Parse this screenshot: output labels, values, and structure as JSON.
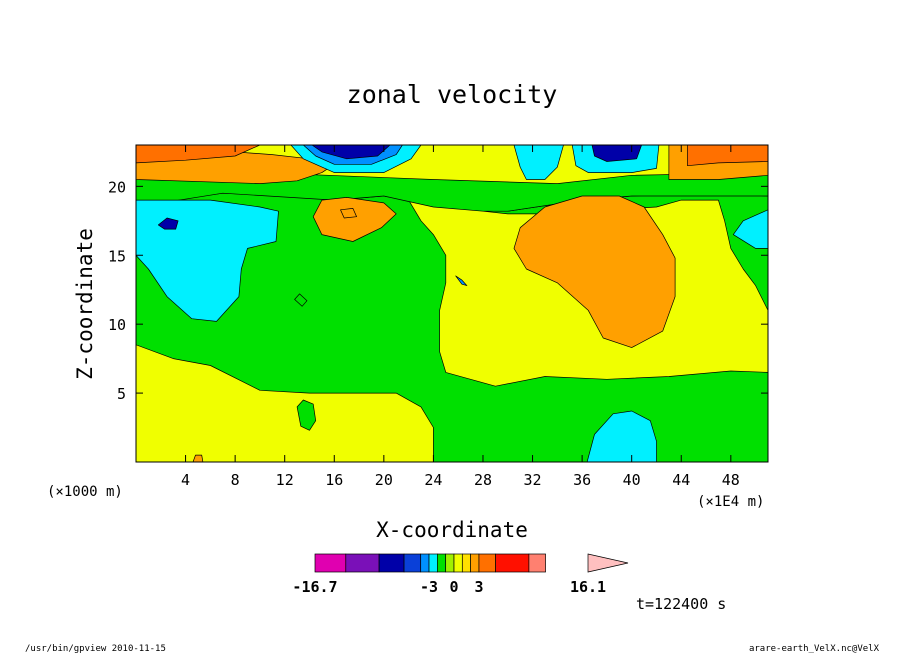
{
  "chart_data": {
    "type": "heatmap",
    "title": "zonal velocity",
    "xlabel": "X-coordinate",
    "ylabel": "Z-coordinate",
    "x_unit_left": "(×1000 m)",
    "x_unit_right": "(×1E4 m)",
    "xlim": [
      0,
      51
    ],
    "ylim": [
      0,
      23
    ],
    "x_ticks": [
      4,
      8,
      12,
      16,
      20,
      24,
      28,
      32,
      36,
      40,
      44,
      48
    ],
    "x_tick_labels": [
      "4",
      "8",
      "12",
      "16",
      "20",
      "24",
      "28",
      "32",
      "36",
      "40",
      "44",
      "48"
    ],
    "y_ticks": [
      5,
      10,
      15,
      20
    ],
    "y_tick_labels": [
      "5",
      "10",
      "15",
      "20"
    ],
    "colorbar": {
      "colors": [
        "#e000b0",
        "#7a10b8",
        "#0000a8",
        "#0a40d8",
        "#0090ff",
        "#00f0ff",
        "#00e000",
        "#a0f000",
        "#f0ff00",
        "#ffe000",
        "#ffa000",
        "#ff7000",
        "#ff1000",
        "#ff8070",
        "#ffc0c0"
      ],
      "labels": [
        "-16.7",
        "-3",
        "0",
        "3",
        "16.1"
      ],
      "label_values": [
        -16.7,
        -3,
        0,
        3,
        16.1
      ]
    },
    "regions": [
      {
        "color": "#f0ff00",
        "points": [
          [
            0,
            0
          ],
          [
            51,
            0
          ],
          [
            51,
            23
          ],
          [
            0,
            23
          ]
        ]
      },
      {
        "color": "#00e000",
        "points": [
          [
            0,
            18.5
          ],
          [
            3,
            19
          ],
          [
            7,
            19.5
          ],
          [
            12,
            19.3
          ],
          [
            16,
            19
          ],
          [
            20,
            19.3
          ],
          [
            22,
            19
          ],
          [
            23,
            17.5
          ],
          [
            24,
            16.5
          ],
          [
            25,
            15
          ],
          [
            25,
            13
          ],
          [
            24.5,
            11
          ],
          [
            24.5,
            8
          ],
          [
            25,
            6.5
          ],
          [
            27,
            6
          ],
          [
            29,
            5.5
          ],
          [
            33,
            6.2
          ],
          [
            38,
            6
          ],
          [
            43,
            6.2
          ],
          [
            48,
            6.6
          ],
          [
            51,
            6.5
          ],
          [
            51,
            0
          ],
          [
            24,
            0
          ],
          [
            24,
            2.5
          ],
          [
            23,
            4
          ],
          [
            21,
            5
          ],
          [
            14,
            5
          ],
          [
            10,
            5.2
          ],
          [
            6,
            7
          ],
          [
            3,
            7.5
          ],
          [
            0,
            8.5
          ]
        ]
      },
      {
        "color": "#00e000",
        "points": [
          [
            28,
            18.2
          ],
          [
            30,
            18.2
          ],
          [
            36,
            19
          ],
          [
            40,
            19.3
          ],
          [
            46,
            19.5
          ],
          [
            51,
            19.3
          ],
          [
            51,
            11
          ],
          [
            50,
            12.8
          ],
          [
            49,
            14
          ],
          [
            48,
            15.5
          ],
          [
            47.5,
            17.5
          ],
          [
            47,
            19
          ],
          [
            44,
            19
          ],
          [
            42,
            18.5
          ],
          [
            38,
            18.3
          ],
          [
            33,
            18
          ],
          [
            30,
            18
          ]
        ]
      },
      {
        "color": "#00e000",
        "points": [
          [
            0,
            21
          ],
          [
            10,
            21
          ],
          [
            24,
            20.5
          ],
          [
            34,
            20.2
          ],
          [
            40,
            20.8
          ],
          [
            51,
            21
          ],
          [
            51,
            19.3
          ],
          [
            40,
            19.3
          ],
          [
            36,
            19
          ],
          [
            30,
            18.2
          ],
          [
            28,
            18.2
          ],
          [
            24,
            18.5
          ],
          [
            20,
            19.3
          ],
          [
            16,
            19
          ],
          [
            7,
            19.5
          ],
          [
            0,
            18.5
          ]
        ]
      },
      {
        "color": "#00f0ff",
        "points": [
          [
            0,
            19
          ],
          [
            6,
            19
          ],
          [
            10,
            18.5
          ],
          [
            11.5,
            18.2
          ],
          [
            11.3,
            16
          ],
          [
            9,
            15.5
          ],
          [
            8.5,
            14
          ],
          [
            8.3,
            12
          ],
          [
            6.5,
            10.2
          ],
          [
            4.5,
            10.4
          ],
          [
            2.5,
            12
          ],
          [
            1,
            14
          ],
          [
            0,
            15
          ]
        ]
      },
      {
        "color": "#00f0ff",
        "points": [
          [
            48.2,
            16.5
          ],
          [
            49,
            17.5
          ],
          [
            51,
            18.3
          ],
          [
            51,
            15.5
          ],
          [
            50,
            15.5
          ]
        ]
      },
      {
        "color": "#00f0ff",
        "points": [
          [
            36.4,
            0
          ],
          [
            37,
            2
          ],
          [
            38.5,
            3.5
          ],
          [
            40,
            3.7
          ],
          [
            41.5,
            3
          ],
          [
            42,
            1.5
          ],
          [
            42,
            0
          ]
        ]
      },
      {
        "color": "#ffa000",
        "points": [
          [
            14.3,
            17.8
          ],
          [
            15,
            19
          ],
          [
            17,
            19.2
          ],
          [
            20,
            18.8
          ],
          [
            21,
            18
          ],
          [
            19.8,
            17
          ],
          [
            17.5,
            16
          ],
          [
            15,
            16.5
          ]
        ]
      },
      {
        "color": "#ffa000",
        "points": [
          [
            31,
            17
          ],
          [
            33,
            18.5
          ],
          [
            36,
            19.3
          ],
          [
            39,
            19.3
          ],
          [
            41,
            18.5
          ],
          [
            42.5,
            16.5
          ],
          [
            43.5,
            14.8
          ],
          [
            43.5,
            12
          ],
          [
            42.5,
            9.5
          ],
          [
            40,
            8.3
          ],
          [
            37.7,
            9
          ],
          [
            36.5,
            11
          ],
          [
            34,
            13
          ],
          [
            31.5,
            14
          ],
          [
            30.5,
            15.5
          ]
        ]
      },
      {
        "color": "#ffa000",
        "points": [
          [
            0,
            20.5
          ],
          [
            10,
            20.2
          ],
          [
            13,
            20.4
          ],
          [
            15,
            21
          ],
          [
            16,
            21.6
          ],
          [
            14,
            22
          ],
          [
            11,
            22.3
          ],
          [
            8,
            22.5
          ],
          [
            4,
            22.4
          ],
          [
            0,
            22.1
          ]
        ]
      },
      {
        "color": "#ffa000",
        "points": [
          [
            43,
            20.5
          ],
          [
            47,
            20.5
          ],
          [
            51,
            20.8
          ],
          [
            51,
            23
          ],
          [
            43,
            23
          ],
          [
            43,
            21.5
          ]
        ]
      },
      {
        "color": "#ff7000",
        "points": [
          [
            0,
            21.7
          ],
          [
            4,
            21.9
          ],
          [
            8,
            22.2
          ],
          [
            10,
            23
          ],
          [
            0,
            23
          ]
        ]
      },
      {
        "color": "#ff7000",
        "points": [
          [
            44.5,
            21.5
          ],
          [
            47,
            21.7
          ],
          [
            51,
            21.8
          ],
          [
            51,
            23
          ],
          [
            44.5,
            23
          ]
        ]
      },
      {
        "color": "#00f0ff",
        "points": [
          [
            12.5,
            23
          ],
          [
            13.5,
            22
          ],
          [
            16,
            21
          ],
          [
            20,
            21
          ],
          [
            22.2,
            22
          ],
          [
            23,
            23
          ]
        ]
      },
      {
        "color": "#0090ff",
        "points": [
          [
            13.5,
            23
          ],
          [
            14.5,
            22.2
          ],
          [
            16,
            21.6
          ],
          [
            19,
            21.6
          ],
          [
            21,
            22.3
          ],
          [
            21.5,
            23
          ]
        ]
      },
      {
        "color": "#0000a8",
        "points": [
          [
            14.2,
            23
          ],
          [
            15,
            22.5
          ],
          [
            17,
            22
          ],
          [
            19.5,
            22.2
          ],
          [
            20.5,
            23
          ]
        ]
      },
      {
        "color": "#00f0ff",
        "points": [
          [
            30.5,
            23
          ],
          [
            31,
            21.4
          ],
          [
            31.5,
            20.5
          ],
          [
            33,
            20.5
          ],
          [
            34,
            21.4
          ],
          [
            34.5,
            23
          ]
        ]
      },
      {
        "color": "#00f0ff",
        "points": [
          [
            35.2,
            23
          ],
          [
            35.5,
            21.5
          ],
          [
            36.5,
            21
          ],
          [
            40,
            21
          ],
          [
            42,
            21.3
          ],
          [
            42.2,
            23
          ]
        ]
      },
      {
        "color": "#0000a8",
        "points": [
          [
            36.8,
            23
          ],
          [
            37,
            22.2
          ],
          [
            38,
            21.8
          ],
          [
            40.4,
            22
          ],
          [
            40.8,
            23
          ]
        ]
      },
      {
        "color": "#0000a8",
        "points": [
          [
            1.8,
            17.2
          ],
          [
            2.5,
            17.7
          ],
          [
            3.4,
            17.5
          ],
          [
            3.2,
            16.9
          ],
          [
            2.3,
            16.9
          ]
        ]
      },
      {
        "color": "#00e000",
        "points": [
          [
            13,
            4
          ],
          [
            13.5,
            4.5
          ],
          [
            14.3,
            4.2
          ],
          [
            14.5,
            3
          ],
          [
            14,
            2.3
          ],
          [
            13.3,
            2.6
          ]
        ]
      },
      {
        "color": "#00e000",
        "points": [
          [
            12.8,
            11.8
          ],
          [
            13.2,
            12.2
          ],
          [
            13.8,
            11.7
          ],
          [
            13.4,
            11.3
          ]
        ]
      },
      {
        "color": "#0090ff",
        "points": [
          [
            25.8,
            13.5
          ],
          [
            26.3,
            13.2
          ],
          [
            26.7,
            12.8
          ],
          [
            26.3,
            12.9
          ]
        ]
      },
      {
        "color": "#ffa000",
        "points": [
          [
            4.6,
            0
          ],
          [
            4.8,
            0.5
          ],
          [
            5.3,
            0.5
          ],
          [
            5.4,
            0
          ]
        ]
      },
      {
        "color": "#ffa000",
        "points": [
          [
            16.5,
            18.3
          ],
          [
            17.5,
            18.4
          ],
          [
            17.8,
            17.8
          ],
          [
            16.8,
            17.7
          ]
        ]
      }
    ]
  },
  "annotations": {
    "time_label": "t=122400 s",
    "program_info": "/usr/bin/gpview  2010-11-15",
    "file_info": "arare-earth_VelX.nc@VelX"
  }
}
